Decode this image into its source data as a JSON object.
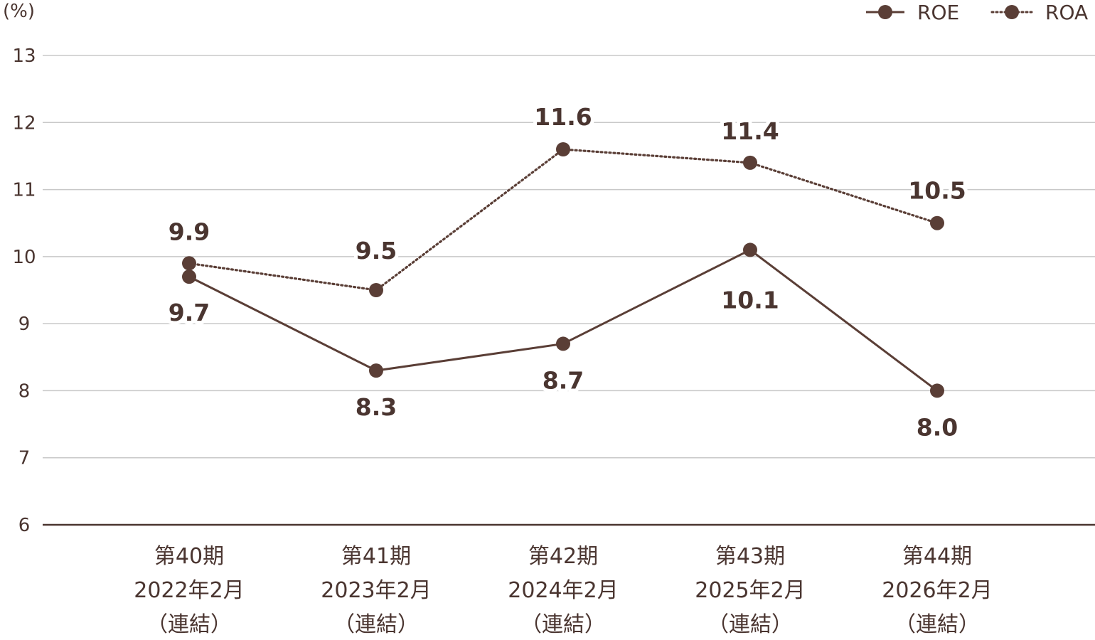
{
  "chart_data": {
    "type": "line",
    "unit_label": "(%)",
    "categories": [
      [
        "第40期",
        "2022年2月",
        "（連結）"
      ],
      [
        "第41期",
        "2023年2月",
        "（連結）"
      ],
      [
        "第42期",
        "2024年2月",
        "（連結）"
      ],
      [
        "第43期",
        "2025年2月",
        "（連結）"
      ],
      [
        "第44期",
        "2026年2月",
        "（連結）"
      ]
    ],
    "series": [
      {
        "name": "ROE",
        "style": "solid",
        "values": [
          9.7,
          8.3,
          8.7,
          10.1,
          8.0
        ],
        "labels": [
          "9.7",
          "8.3",
          "8.7",
          "10.1",
          "8.0"
        ]
      },
      {
        "name": "ROA",
        "style": "dotted",
        "values": [
          9.9,
          9.5,
          11.6,
          11.4,
          10.5
        ],
        "labels": [
          "9.9",
          "9.5",
          "11.6",
          "11.4",
          "10.5"
        ]
      }
    ],
    "ylim": [
      6,
      13
    ],
    "yticks": [
      "6",
      "7",
      "8",
      "9",
      "10",
      "11",
      "12",
      "13"
    ],
    "grid": true,
    "legend_position": "top-right",
    "colors": {
      "line": "#5a3e36",
      "grid": "#c8c8c8",
      "axis": "#4a3530"
    }
  }
}
